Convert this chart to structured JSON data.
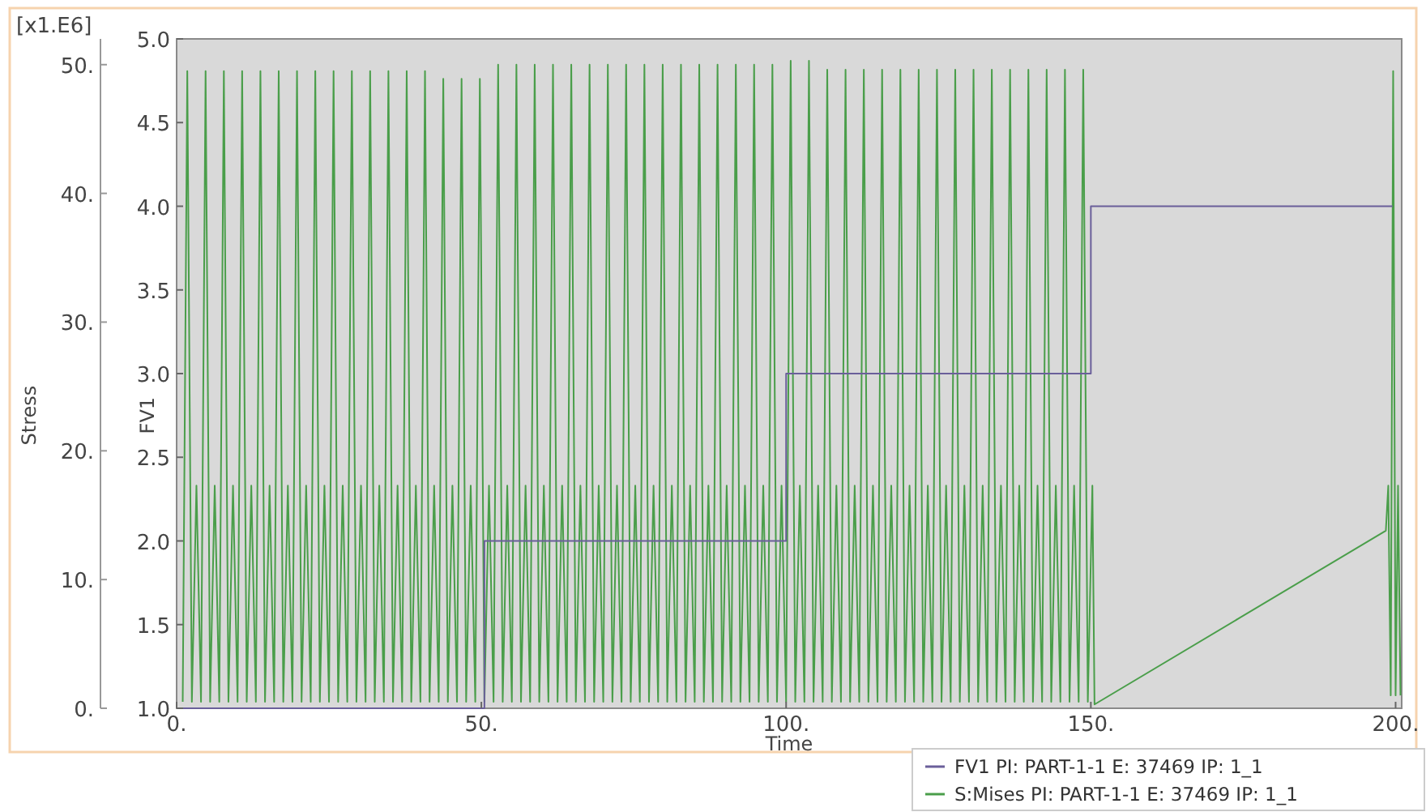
{
  "chart_data": {
    "type": "line",
    "xlabel": "Time",
    "ylabel": "Stress",
    "y2label": "FV1",
    "annotations": [
      "[x1.E6]"
    ],
    "xlim": [
      0,
      201
    ],
    "xticks": [
      {
        "value": 0,
        "label": "0."
      },
      {
        "value": 50,
        "label": "50."
      },
      {
        "value": 100,
        "label": "100."
      },
      {
        "value": 150,
        "label": "150."
      },
      {
        "value": 200,
        "label": "200."
      }
    ],
    "ylim": [
      0,
      52
    ],
    "yticks": [
      {
        "value": 0,
        "label": "0."
      },
      {
        "value": 10,
        "label": "10."
      },
      {
        "value": 20,
        "label": "20."
      },
      {
        "value": 30,
        "label": "30."
      },
      {
        "value": 40,
        "label": "40."
      },
      {
        "value": 50,
        "label": "50."
      }
    ],
    "y2lim": [
      1,
      5
    ],
    "y2ticks": [
      {
        "value": 1,
        "label": "1.0"
      },
      {
        "value": 1.5,
        "label": "1.5"
      },
      {
        "value": 2,
        "label": "2.0"
      },
      {
        "value": 2.5,
        "label": "2.5"
      },
      {
        "value": 3,
        "label": "3.0"
      },
      {
        "value": 3.5,
        "label": "3.5"
      },
      {
        "value": 4,
        "label": "4.0"
      },
      {
        "value": 4.5,
        "label": "4.5"
      },
      {
        "value": 5,
        "label": "5.0"
      }
    ],
    "grid": false,
    "legend": "bottom right",
    "marker": "none",
    "line_style": "solid",
    "series": [
      {
        "name": "FV1 PI: PART-1-1 E: 37469 IP: 1_1",
        "type": "step",
        "axis": "y2",
        "color": "#6a5f9a",
        "x": [
          0,
          50.5,
          100,
          150,
          199.5
        ],
        "values": [
          1,
          2,
          3,
          4,
          4
        ]
      },
      {
        "name": "S:Mises PI: PART-1-1 E: 37469 IP: 1_1",
        "type": "line",
        "color": "#4a9e4a",
        "x": [
          1,
          1.75,
          2.5,
          3.25,
          4,
          4.75,
          5.5,
          6.25,
          7,
          7.75,
          8.5,
          9.25,
          10,
          10.75,
          11.5,
          12.25,
          13,
          13.75,
          14.5,
          15.25,
          16,
          16.75,
          17.5,
          18.25,
          19,
          19.75,
          20.5,
          21.25,
          22,
          22.75,
          23.5,
          24.25,
          25,
          25.75,
          26.5,
          27.25,
          28,
          28.75,
          29.5,
          30.25,
          31,
          31.75,
          32.5,
          33.25,
          34,
          34.75,
          35.5,
          36.25,
          37,
          37.75,
          38.5,
          39.25,
          40,
          40.75,
          41.5,
          42.25,
          43,
          43.75,
          44.5,
          45.25,
          46,
          46.75,
          47.5,
          48.25,
          49,
          49.75,
          50.5,
          51.25,
          52,
          52.75,
          53.5,
          54.25,
          55,
          55.75,
          56.5,
          57.25,
          58,
          58.75,
          59.5,
          60.25,
          61,
          61.75,
          62.5,
          63.25,
          64,
          64.75,
          65.5,
          66.25,
          67,
          67.75,
          68.5,
          69.25,
          70,
          70.75,
          71.5,
          72.25,
          73,
          73.75,
          74.5,
          75.25,
          76,
          76.75,
          77.5,
          78.25,
          79,
          79.75,
          80.5,
          81.25,
          82,
          82.75,
          83.5,
          84.25,
          85,
          85.75,
          86.5,
          87.25,
          88,
          88.75,
          89.5,
          90.25,
          91,
          91.75,
          92.5,
          93.25,
          94,
          94.75,
          95.5,
          96.25,
          97,
          97.75,
          98.5,
          99.25,
          100,
          100.75,
          101.5,
          102.25,
          103,
          103.75,
          104.5,
          105.25,
          106,
          106.75,
          107.5,
          108.25,
          109,
          109.75,
          110.5,
          111.25,
          112,
          112.75,
          113.5,
          114.25,
          115,
          115.75,
          116.5,
          117.25,
          118,
          118.75,
          119.5,
          120.25,
          121,
          121.75,
          122.5,
          123.25,
          124,
          124.75,
          125.5,
          126.25,
          127,
          127.75,
          128.5,
          129.25,
          130,
          130.75,
          131.5,
          132.25,
          133,
          133.75,
          134.5,
          135.25,
          136,
          136.75,
          137.5,
          138.25,
          139,
          139.75,
          140.5,
          141.25,
          142,
          142.75,
          143.5,
          144.25,
          145,
          145.75,
          146.5,
          147.25,
          148,
          148.75,
          149.5,
          150.25,
          150.6,
          198.4,
          198.8,
          199.2,
          199.6,
          200,
          200.4,
          200.8
        ],
        "values": [
          0.5,
          49.5,
          0.5,
          17.3,
          0.5,
          49.5,
          0.5,
          17.3,
          0.5,
          49.5,
          0.5,
          17.3,
          0.5,
          49.5,
          0.5,
          17.3,
          0.5,
          49.5,
          0.5,
          17.3,
          0.5,
          49.5,
          0.5,
          17.3,
          0.5,
          49.5,
          0.5,
          17.3,
          0.5,
          49.5,
          0.5,
          17.3,
          0.5,
          49.5,
          0.5,
          17.3,
          0.5,
          49.5,
          0.5,
          17.3,
          0.5,
          49.5,
          0.5,
          17.3,
          0.5,
          49.5,
          0.5,
          17.3,
          0.5,
          49.5,
          0.5,
          17.3,
          0.5,
          49.5,
          0.5,
          17.3,
          0.5,
          48.9,
          0.5,
          17.3,
          0.5,
          48.9,
          0.5,
          17.3,
          0.5,
          48.9,
          0.5,
          17.3,
          0.5,
          50,
          0.5,
          17.3,
          0.5,
          50,
          0.5,
          17.3,
          0.5,
          50,
          0.5,
          17.3,
          0.5,
          50,
          0.5,
          17.3,
          0.5,
          50,
          0.5,
          17.3,
          0.5,
          50,
          0.5,
          17.3,
          0.5,
          50,
          0.5,
          17.3,
          0.5,
          50,
          0.5,
          17.3,
          0.5,
          50,
          0.5,
          17.3,
          0.5,
          50,
          0.5,
          17.3,
          0.5,
          50,
          0.5,
          17.3,
          0.5,
          50,
          0.5,
          17.3,
          0.5,
          50,
          0.5,
          17.3,
          0.5,
          50,
          0.5,
          17.3,
          0.5,
          50,
          0.5,
          17.3,
          0.5,
          50,
          0.5,
          17.3,
          0.5,
          50.3,
          0.5,
          17.3,
          0.5,
          50.3,
          0.5,
          17.3,
          0.5,
          49.6,
          0.5,
          17.3,
          0.5,
          49.6,
          0.5,
          17.3,
          0.5,
          49.6,
          0.5,
          17.3,
          0.5,
          49.6,
          0.5,
          17.3,
          0.5,
          49.6,
          0.5,
          17.3,
          0.5,
          49.6,
          0.5,
          17.3,
          0.5,
          49.6,
          0.5,
          17.3,
          0.5,
          49.6,
          0.5,
          17.3,
          0.5,
          49.6,
          0.5,
          17.3,
          0.5,
          49.6,
          0.5,
          17.3,
          0.5,
          49.6,
          0.5,
          17.3,
          0.5,
          49.6,
          0.5,
          17.3,
          0.5,
          49.6,
          0.5,
          17.3,
          0.5,
          49.6,
          0.5,
          17.3,
          0.5,
          49.6,
          0.5,
          17.3,
          0.3,
          13.8,
          17.3,
          1,
          49.5,
          1,
          17.3,
          1
        ]
      }
    ]
  }
}
